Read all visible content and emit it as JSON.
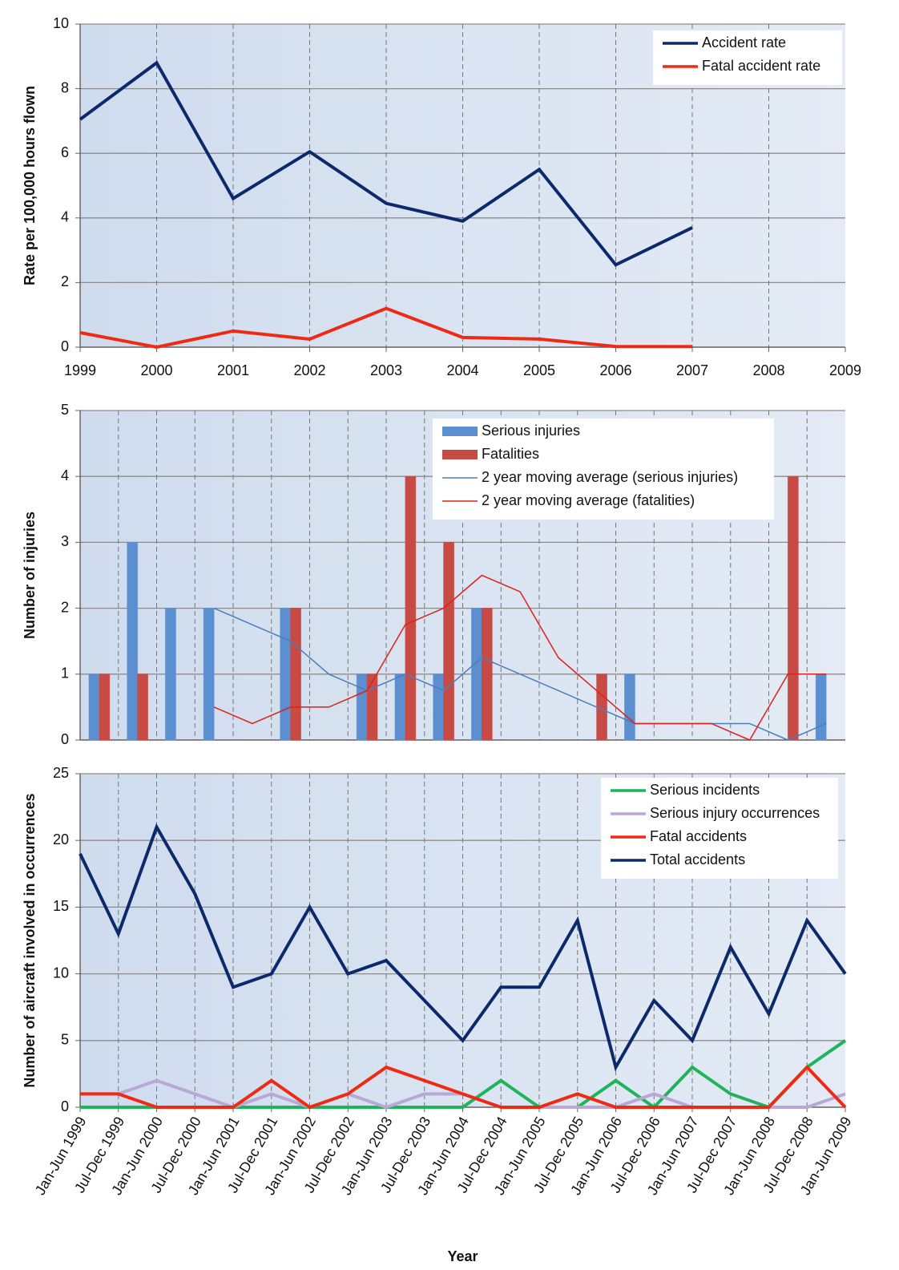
{
  "chart_data": [
    {
      "type": "line",
      "ylabel": "Rate per 100,000 hours flown",
      "x": [
        1999,
        2000,
        2001,
        2002,
        2003,
        2004,
        2005,
        2006,
        2007,
        2008,
        2009
      ],
      "xlim": [
        1999,
        2009
      ],
      "xticks": [
        1999,
        2000,
        2001,
        2002,
        2003,
        2004,
        2005,
        2006,
        2007,
        2008,
        2009
      ],
      "ylim": [
        0,
        10
      ],
      "yticks": [
        0,
        2,
        4,
        6,
        8,
        10
      ],
      "grid": true,
      "legend": "upper right",
      "series": [
        {
          "name": "Accident rate",
          "color": "#0c2a6b",
          "values": [
            7.05,
            8.8,
            4.6,
            6.05,
            4.45,
            3.9,
            5.5,
            2.55,
            3.7,
            null,
            null
          ]
        },
        {
          "name": "Fatal accident rate",
          "color": "#f02a12",
          "values": [
            0.45,
            0,
            0.5,
            0.25,
            1.2,
            0.3,
            0.25,
            0.02,
            0.02,
            null,
            null
          ]
        }
      ]
    },
    {
      "type": "bar",
      "ylabel": "Number of injuries",
      "categories": [
        null,
        null,
        null,
        null,
        null,
        null,
        null,
        null,
        null,
        null,
        null,
        null,
        null,
        null,
        null,
        null,
        null,
        null,
        null,
        null
      ],
      "ylim": [
        0,
        5
      ],
      "yticks": [
        0,
        1,
        2,
        3,
        4,
        5
      ],
      "grid": true,
      "legend": "upper right",
      "series": [
        {
          "name": "Serious injuries",
          "color": "#5b8fd0",
          "values": [
            1,
            3,
            2,
            2,
            0,
            2,
            0,
            1,
            1,
            1,
            2,
            0,
            0,
            0,
            1,
            0,
            0,
            0,
            0,
            1
          ]
        },
        {
          "name": "Fatalities",
          "color": "#c84a45",
          "values": [
            1,
            1,
            0,
            0,
            0,
            2,
            0,
            1,
            4,
            3,
            2,
            0,
            0,
            1,
            0,
            0,
            0,
            0,
            4,
            0
          ]
        },
        {
          "name": "2 year moving average (serious injuries)",
          "color": "#4a7ebb",
          "type": "line",
          "values": [
            null,
            null,
            null,
            2,
            1.75,
            1.5,
            1,
            0.75,
            1,
            0.75,
            1.25,
            1,
            0.75,
            0.5,
            0.25,
            0.25,
            0.25,
            0.25,
            0,
            0.25
          ]
        },
        {
          "name": "2 year moving average (fatalities)",
          "color": "#e0201b",
          "type": "line",
          "values": [
            null,
            null,
            null,
            0.5,
            0.25,
            0.5,
            0.5,
            0.75,
            1.75,
            2,
            2.5,
            2.25,
            1.25,
            0.75,
            0.25,
            0.25,
            0.25,
            0,
            1,
            1
          ]
        }
      ]
    },
    {
      "type": "line",
      "xlabel": "Year",
      "ylabel": "Number of aircraft involved in occurrences",
      "categories": [
        "Jan-Jun 1999",
        "Jul-Dec 1999",
        "Jan-Jun 2000",
        "Jul-Dec 2000",
        "Jan-Jun 2001",
        "Jul-Dec 2001",
        "Jan-Jun 2002",
        "Jul-Dec 2002",
        "Jan-Jun 2003",
        "Jul-Dec 2003",
        "Jan-Jun 2004",
        "Jul-Dec 2004",
        "Jan-Jun 2005",
        "Jul-Dec 2005",
        "Jan-Jun 2006",
        "Jul-Dec 2006",
        "Jan-Jun 2007",
        "Jul-Dec 2007",
        "Jan-Jun 2008",
        "Jul-Dec 2008",
        "Jan-Jun 2009"
      ],
      "ylim": [
        0,
        25
      ],
      "yticks": [
        0,
        5,
        10,
        15,
        20,
        25
      ],
      "grid": true,
      "legend": "upper right",
      "series": [
        {
          "name": "Serious incidents",
          "color": "#1fb45a",
          "values": [
            0,
            0,
            0,
            0,
            0,
            0,
            0,
            0,
            0,
            0,
            0,
            2,
            0,
            0,
            2,
            0,
            3,
            1,
            0,
            3,
            5
          ]
        },
        {
          "name": "Serious injury occurrences",
          "color": "#b9a7d6",
          "values": [
            1,
            1,
            2,
            1,
            0,
            1,
            0,
            1,
            0,
            1,
            1,
            0,
            0,
            0,
            0,
            1,
            0,
            0,
            0,
            0,
            1
          ]
        },
        {
          "name": "Fatal accidents",
          "color": "#f02a12",
          "values": [
            1,
            1,
            0,
            0,
            0,
            2,
            0,
            1,
            3,
            2,
            1,
            0,
            0,
            1,
            0,
            0,
            0,
            0,
            0,
            3,
            0
          ]
        },
        {
          "name": "Total accidents",
          "color": "#0c2a6b",
          "values": [
            19,
            13,
            21,
            16,
            9,
            10,
            15,
            10,
            11,
            8,
            5,
            9,
            9,
            14,
            3,
            8,
            5,
            12,
            7,
            14,
            10
          ]
        }
      ]
    }
  ]
}
